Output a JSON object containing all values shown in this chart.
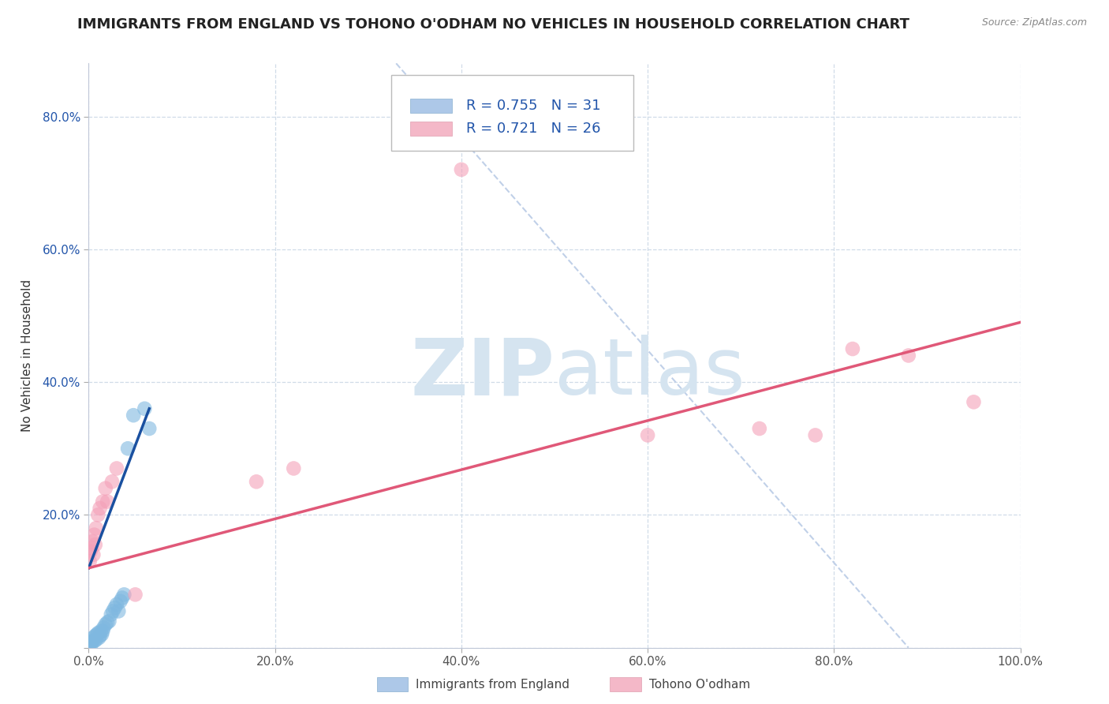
{
  "title": "IMMIGRANTS FROM ENGLAND VS TOHONO O'ODHAM NO VEHICLES IN HOUSEHOLD CORRELATION CHART",
  "source": "Source: ZipAtlas.com",
  "ylabel": "No Vehicles in Household",
  "x_min": 0.0,
  "x_max": 1.0,
  "y_min": 0.0,
  "y_max": 0.88,
  "x_ticks": [
    0.0,
    0.2,
    0.4,
    0.6,
    0.8,
    1.0
  ],
  "x_tick_labels": [
    "0.0%",
    "20.0%",
    "40.0%",
    "60.0%",
    "80.0%",
    "100.0%"
  ],
  "y_ticks": [
    0.0,
    0.2,
    0.4,
    0.6,
    0.8
  ],
  "y_tick_labels": [
    "",
    "20.0%",
    "40.0%",
    "60.0%",
    "80.0%"
  ],
  "blue_scatter": [
    [
      0.001,
      0.005
    ],
    [
      0.002,
      0.008
    ],
    [
      0.003,
      0.006
    ],
    [
      0.004,
      0.01
    ],
    [
      0.005,
      0.015
    ],
    [
      0.006,
      0.01
    ],
    [
      0.007,
      0.018
    ],
    [
      0.008,
      0.012
    ],
    [
      0.009,
      0.02
    ],
    [
      0.01,
      0.022
    ],
    [
      0.011,
      0.015
    ],
    [
      0.012,
      0.018
    ],
    [
      0.013,
      0.025
    ],
    [
      0.014,
      0.02
    ],
    [
      0.015,
      0.025
    ],
    [
      0.016,
      0.03
    ],
    [
      0.018,
      0.035
    ],
    [
      0.02,
      0.038
    ],
    [
      0.022,
      0.04
    ],
    [
      0.024,
      0.05
    ],
    [
      0.026,
      0.055
    ],
    [
      0.028,
      0.06
    ],
    [
      0.03,
      0.065
    ],
    [
      0.032,
      0.055
    ],
    [
      0.034,
      0.07
    ],
    [
      0.036,
      0.075
    ],
    [
      0.038,
      0.08
    ],
    [
      0.042,
      0.3
    ],
    [
      0.048,
      0.35
    ],
    [
      0.06,
      0.36
    ],
    [
      0.065,
      0.33
    ]
  ],
  "pink_scatter": [
    [
      0.001,
      0.13
    ],
    [
      0.002,
      0.145
    ],
    [
      0.003,
      0.15
    ],
    [
      0.004,
      0.16
    ],
    [
      0.005,
      0.14
    ],
    [
      0.006,
      0.17
    ],
    [
      0.007,
      0.155
    ],
    [
      0.008,
      0.18
    ],
    [
      0.01,
      0.2
    ],
    [
      0.012,
      0.21
    ],
    [
      0.015,
      0.22
    ],
    [
      0.018,
      0.24
    ],
    [
      0.02,
      0.22
    ],
    [
      0.025,
      0.25
    ],
    [
      0.03,
      0.27
    ],
    [
      0.05,
      0.08
    ],
    [
      0.18,
      0.25
    ],
    [
      0.22,
      0.27
    ],
    [
      0.4,
      0.72
    ],
    [
      0.6,
      0.32
    ],
    [
      0.72,
      0.33
    ],
    [
      0.78,
      0.32
    ],
    [
      0.82,
      0.45
    ],
    [
      0.88,
      0.44
    ],
    [
      0.95,
      0.37
    ]
  ],
  "blue_line": {
    "x0": 0.0,
    "y0": 0.12,
    "x1": 0.065,
    "y1": 0.36
  },
  "pink_line": {
    "x0": 0.0,
    "y0": 0.12,
    "x1": 1.0,
    "y1": 0.49
  },
  "diag_line": {
    "x0": 0.33,
    "y0": 0.88,
    "x1": 0.88,
    "y1": 0.0
  },
  "blue_color": "#7fb8e0",
  "pink_color": "#f4a0b8",
  "blue_line_color": "#1a50a0",
  "pink_line_color": "#e05878",
  "diag_color": "#c0d0e8",
  "watermark_zip": "ZIP",
  "watermark_atlas": "atlas",
  "watermark_color": "#d5e4f0",
  "legend_color_blue": "#adc8e8",
  "legend_color_pink": "#f4b8c8",
  "legend_text_color": "#2255aa",
  "title_fontsize": 13,
  "axis_label_fontsize": 11,
  "tick_fontsize": 11,
  "legend_fontsize": 13
}
